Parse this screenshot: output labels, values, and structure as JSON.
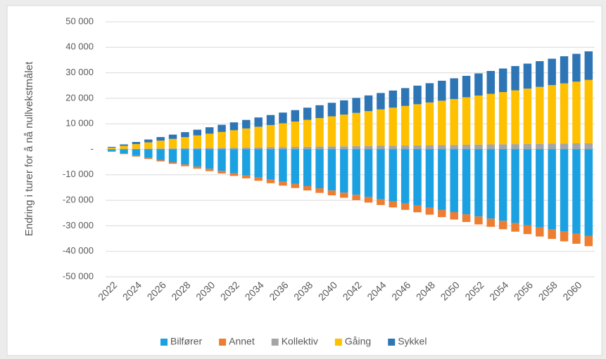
{
  "chart_data": {
    "type": "bar",
    "stacked": true,
    "y_label": "Endring i turer for å nå nullvekstmålet",
    "categories": [
      "2022",
      null,
      "2024",
      null,
      "2026",
      null,
      "2028",
      null,
      "2030",
      null,
      "2032",
      null,
      "2034",
      null,
      "2036",
      null,
      "2038",
      null,
      "2040",
      null,
      "2042",
      null,
      "2044",
      null,
      "2046",
      null,
      "2048",
      null,
      "2050",
      null,
      "2052",
      null,
      "2054",
      null,
      "2056",
      null,
      "2058",
      null,
      "2060",
      null
    ],
    "series": [
      {
        "name": "Bilfører",
        "color": "#1ba1e2",
        "values": [
          -850,
          -1700,
          -2550,
          -3400,
          -4250,
          -5100,
          -5950,
          -6800,
          -7650,
          -8500,
          -9350,
          -10200,
          -11050,
          -11900,
          -12750,
          -13600,
          -14450,
          -15300,
          -16150,
          -17000,
          -17850,
          -18700,
          -19550,
          -20400,
          -21250,
          -22100,
          -22950,
          -23800,
          -24650,
          -25500,
          -26350,
          -27200,
          -28050,
          -28900,
          -29750,
          -30600,
          -31450,
          -32300,
          -33150,
          -34000
        ]
      },
      {
        "name": "Annet",
        "color": "#ed7d31",
        "values": [
          -100,
          -200,
          -300,
          -400,
          -500,
          -600,
          -700,
          -800,
          -900,
          -1000,
          -1100,
          -1200,
          -1300,
          -1400,
          -1500,
          -1600,
          -1700,
          -1800,
          -1900,
          -2000,
          -2100,
          -2200,
          -2300,
          -2400,
          -2500,
          -2600,
          -2700,
          -2800,
          -2900,
          -3000,
          -3100,
          -3200,
          -3300,
          -3400,
          -3500,
          -3600,
          -3700,
          -3800,
          -3900,
          -4000
        ]
      },
      {
        "name": "Kollektiv",
        "color": "#a5a5a5",
        "values": [
          60,
          120,
          180,
          240,
          300,
          360,
          420,
          480,
          540,
          600,
          660,
          720,
          780,
          840,
          900,
          960,
          1020,
          1080,
          1140,
          1200,
          1260,
          1320,
          1380,
          1440,
          1500,
          1560,
          1620,
          1680,
          1740,
          1800,
          1860,
          1920,
          1980,
          2040,
          2100,
          2160,
          2220,
          2280,
          2340,
          2400
        ]
      },
      {
        "name": "Gåing",
        "color": "#ffc000",
        "values": [
          620,
          1240,
          1860,
          2480,
          3100,
          3720,
          4340,
          4960,
          5580,
          6200,
          6820,
          7440,
          8060,
          8680,
          9300,
          9920,
          10540,
          11160,
          11780,
          12400,
          13020,
          13640,
          14260,
          14880,
          15500,
          16120,
          16740,
          17360,
          17980,
          18600,
          19220,
          19840,
          20460,
          21080,
          21700,
          22320,
          22940,
          23560,
          24180,
          24800
        ]
      },
      {
        "name": "Sykkel",
        "color": "#2e75b6",
        "values": [
          280,
          560,
          840,
          1120,
          1400,
          1680,
          1960,
          2240,
          2520,
          2800,
          3080,
          3360,
          3640,
          3920,
          4200,
          4480,
          4760,
          5040,
          5320,
          5600,
          5880,
          6160,
          6440,
          6720,
          7000,
          7280,
          7560,
          7840,
          8120,
          8400,
          8680,
          8960,
          9240,
          9520,
          9800,
          10080,
          10360,
          10640,
          10920,
          11200
        ]
      }
    ],
    "ylim": [
      -50000,
      50000
    ],
    "yticks": [
      {
        "value": -50000,
        "label": "-50 000"
      },
      {
        "value": -40000,
        "label": "-40 000"
      },
      {
        "value": -30000,
        "label": "-30 000"
      },
      {
        "value": -20000,
        "label": "-20 000"
      },
      {
        "value": -10000,
        "label": "-10 000"
      },
      {
        "value": 0,
        "label": "-"
      },
      {
        "value": 10000,
        "label": "10 000"
      },
      {
        "value": 20000,
        "label": "20 000"
      },
      {
        "value": 30000,
        "label": "30 000"
      },
      {
        "value": 40000,
        "label": "40 000"
      },
      {
        "value": 50000,
        "label": "50 000"
      }
    ],
    "grid": true,
    "legend": "bottom"
  }
}
